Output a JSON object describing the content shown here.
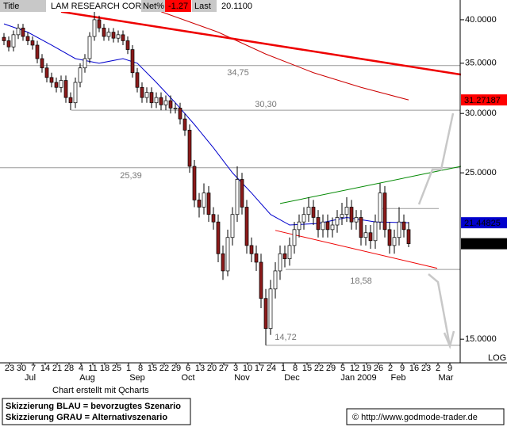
{
  "header": {
    "title_box": "Title",
    "name": "LAM RESEARCH CORP",
    "net_label": "Net%",
    "net": -1.27,
    "last_label": "Last",
    "last": {
      "value": 20.11,
      "label": "20.1100"
    }
  },
  "chart_data": {
    "type": "candlestick",
    "log_scale": true,
    "ylim": [
      13.95,
      42.5
    ],
    "yticks": [
      {
        "value": 40,
        "label": "40.0000"
      },
      {
        "value": 35,
        "label": "35.0000"
      },
      {
        "value": 30,
        "label": "30.0000"
      },
      {
        "value": 25,
        "label": "25.0000"
      },
      {
        "value": 15,
        "label": "15.0000"
      }
    ],
    "scale_label": "LOG",
    "week_labels": [
      "23",
      "30",
      "7",
      "14",
      "21",
      "28",
      "4",
      "11",
      "18",
      "25",
      "1",
      "8",
      "15",
      "22",
      "29",
      "6",
      "13",
      "20",
      "27",
      "3",
      "10",
      "17",
      "24",
      "1",
      "8",
      "15",
      "22",
      "29",
      "5",
      "12",
      "19",
      "26",
      "2",
      "9",
      "16",
      "23",
      "2",
      "9"
    ],
    "month_labels": [
      "Jul",
      "Aug",
      "Sep",
      "Oct",
      "Nov",
      "Dec",
      "Jan 2009",
      "Feb",
      "Mar"
    ],
    "up_color": "#ffffff",
    "down_color": "#8b1a1a",
    "candles": [
      [
        37.9,
        38.4,
        37.0,
        37.5
      ],
      [
        37.5,
        38.0,
        36.3,
        36.8
      ],
      [
        36.8,
        38.7,
        36.3,
        38.2
      ],
      [
        38.2,
        39.5,
        37.7,
        39.0
      ],
      [
        39.0,
        39.5,
        37.5,
        38.0
      ],
      [
        38.0,
        38.5,
        37.0,
        37.5
      ],
      [
        37.5,
        38.0,
        36.5,
        37.0
      ],
      [
        37.0,
        37.5,
        35.0,
        35.5
      ],
      [
        35.5,
        36.0,
        34.0,
        34.5
      ],
      [
        34.5,
        35.0,
        33.0,
        33.5
      ],
      [
        33.5,
        34.0,
        32.5,
        33.0
      ],
      [
        33.0,
        33.5,
        32.0,
        32.5
      ],
      [
        32.5,
        33.7,
        32.0,
        33.2
      ],
      [
        33.2,
        33.7,
        31.0,
        31.5
      ],
      [
        31.5,
        32.0,
        30.3,
        31.0
      ],
      [
        31.0,
        33.5,
        30.5,
        33.0
      ],
      [
        33.0,
        35.0,
        32.5,
        34.5
      ],
      [
        34.5,
        36.0,
        34.0,
        35.5
      ],
      [
        35.5,
        38.5,
        35.0,
        38.0
      ],
      [
        38.0,
        41.0,
        37.5,
        40.0
      ],
      [
        40.0,
        40.5,
        38.5,
        39.0
      ],
      [
        39.0,
        39.5,
        37.5,
        38.0
      ],
      [
        38.0,
        39.0,
        37.5,
        38.5
      ],
      [
        38.5,
        39.0,
        37.3,
        37.8
      ],
      [
        37.8,
        38.7,
        37.3,
        38.2
      ],
      [
        38.2,
        38.7,
        37.0,
        37.5
      ],
      [
        37.5,
        38.0,
        36.0,
        36.5
      ],
      [
        36.5,
        37.0,
        33.5,
        34.0
      ],
      [
        34.0,
        34.5,
        32.0,
        32.5
      ],
      [
        32.5,
        33.0,
        31.0,
        31.5
      ],
      [
        31.5,
        32.5,
        31.0,
        32.0
      ],
      [
        32.0,
        32.5,
        30.5,
        31.0
      ],
      [
        31.0,
        32.0,
        30.5,
        31.5
      ],
      [
        31.5,
        32.0,
        30.3,
        30.8
      ],
      [
        30.8,
        31.7,
        30.3,
        31.2
      ],
      [
        31.2,
        31.7,
        30.0,
        30.5
      ],
      [
        30.5,
        31.0,
        30.0,
        30.5
      ],
      [
        30.5,
        31.0,
        29.0,
        29.5
      ],
      [
        29.5,
        30.0,
        28.0,
        28.5
      ],
      [
        28.5,
        29.0,
        25.0,
        25.5
      ],
      [
        25.5,
        26.0,
        22.5,
        23.0
      ],
      [
        23.0,
        23.5,
        21.8,
        22.5
      ],
      [
        22.5,
        24.2,
        22.0,
        23.5
      ],
      [
        23.5,
        24.0,
        21.5,
        22.0
      ],
      [
        22.0,
        22.5,
        21.0,
        21.5
      ],
      [
        21.5,
        22.0,
        19.0,
        19.5
      ],
      [
        19.5,
        20.0,
        18.0,
        18.5
      ],
      [
        18.5,
        21.0,
        18.2,
        20.5
      ],
      [
        20.5,
        22.5,
        20.0,
        22.0
      ],
      [
        22.0,
        25.5,
        21.5,
        24.5
      ],
      [
        24.5,
        25.0,
        22.0,
        22.5
      ],
      [
        22.5,
        23.0,
        19.5,
        20.0
      ],
      [
        20.0,
        20.5,
        19.0,
        19.5
      ],
      [
        19.5,
        20.0,
        18.5,
        19.0
      ],
      [
        19.0,
        19.5,
        16.5,
        17.0
      ],
      [
        17.0,
        17.5,
        14.72,
        15.5
      ],
      [
        15.5,
        18.0,
        15.2,
        17.5
      ],
      [
        17.5,
        19.0,
        17.0,
        18.5
      ],
      [
        18.5,
        20.0,
        18.0,
        19.5
      ],
      [
        19.5,
        20.0,
        18.7,
        19.2
      ],
      [
        19.2,
        20.5,
        18.8,
        20.0
      ],
      [
        20.0,
        21.5,
        19.5,
        21.0
      ],
      [
        21.0,
        22.0,
        20.5,
        21.5
      ],
      [
        21.5,
        22.5,
        21.0,
        22.0
      ],
      [
        22.0,
        23.2,
        21.5,
        22.5
      ],
      [
        22.5,
        23.0,
        21.3,
        21.8
      ],
      [
        21.8,
        22.3,
        20.5,
        21.0
      ],
      [
        21.0,
        22.0,
        20.5,
        21.5
      ],
      [
        21.5,
        22.0,
        20.5,
        21.0
      ],
      [
        21.0,
        21.8,
        20.5,
        21.3
      ],
      [
        21.3,
        22.3,
        20.8,
        21.8
      ],
      [
        21.8,
        22.8,
        21.3,
        22.0
      ],
      [
        22.0,
        23.2,
        21.5,
        22.5
      ],
      [
        22.5,
        23.0,
        21.0,
        21.5
      ],
      [
        21.5,
        22.3,
        21.0,
        21.8
      ],
      [
        21.8,
        22.3,
        20.0,
        20.5
      ],
      [
        20.5,
        21.3,
        20.0,
        20.8
      ],
      [
        20.8,
        21.3,
        19.8,
        20.3
      ],
      [
        20.3,
        22.0,
        19.8,
        21.5
      ],
      [
        21.5,
        24.2,
        21.0,
        23.5
      ],
      [
        23.5,
        24.0,
        20.5,
        21.0
      ],
      [
        21.0,
        21.5,
        19.5,
        20.0
      ],
      [
        20.0,
        21.0,
        19.5,
        20.5
      ],
      [
        20.5,
        22.5,
        20.0,
        21.5
      ],
      [
        21.5,
        22.0,
        20.5,
        21.0
      ],
      [
        21.0,
        21.5,
        19.9,
        20.11
      ]
    ],
    "averages": [
      {
        "color": "#0000cc",
        "x": [
          0,
          5,
          10,
          15,
          20,
          25,
          28,
          32,
          36,
          40,
          44,
          48,
          52,
          56,
          60,
          66,
          72,
          78,
          85
        ],
        "values": [
          39.5,
          38.5,
          37.0,
          35.5,
          35.0,
          35.5,
          35.0,
          33.0,
          31.0,
          29.0,
          27.0,
          25.0,
          23.5,
          22.0,
          21.3,
          21.4,
          21.8,
          21.5,
          21.45
        ],
        "tag": {
          "value": 21.44825,
          "label": "21.44825"
        },
        "tag_color": "#0000cc"
      },
      {
        "color": "#cc0000",
        "x": [
          33,
          45,
          55,
          65,
          75,
          85
        ],
        "values": [
          41.0,
          38.5,
          36.0,
          34.0,
          32.5,
          31.27
        ],
        "tag": {
          "value": 31.27187,
          "label": "31.27187"
        },
        "tag_color": "#ff0000"
      }
    ],
    "last_tag": {
      "value": 20.11,
      "label": "20.1100"
    },
    "trendlines": [
      {
        "color": "#ee0000",
        "width": 2.5,
        "x": [
          12,
          96
        ],
        "values": [
          41.0,
          33.8
        ]
      },
      {
        "color": "#008800",
        "width": 1,
        "x": [
          58,
          96
        ],
        "values": [
          22.75,
          25.5
        ]
      },
      {
        "color": "#ee0000",
        "width": 1,
        "x": [
          57,
          91
        ],
        "values": [
          20.95,
          18.65
        ]
      }
    ],
    "levels": [
      {
        "value": 34.75,
        "label": "34,75"
      },
      {
        "value": 30.3,
        "label": "30,30"
      },
      {
        "value": 25.39,
        "label": "25,39"
      },
      {
        "value": 18.58,
        "label": "18,58"
      },
      {
        "value": 14.72,
        "label": "14,72"
      },
      {
        "value": 22.4
      }
    ]
  },
  "footer": {
    "credit": "Chart erstellt mit Qcharts",
    "note_blue": "Skizzierung BLAU = bevorzugtes Szenario",
    "note_grey": "Skizzierung GRAU = Alternativszenario",
    "url": "© http://www.godmode-trader.de"
  }
}
